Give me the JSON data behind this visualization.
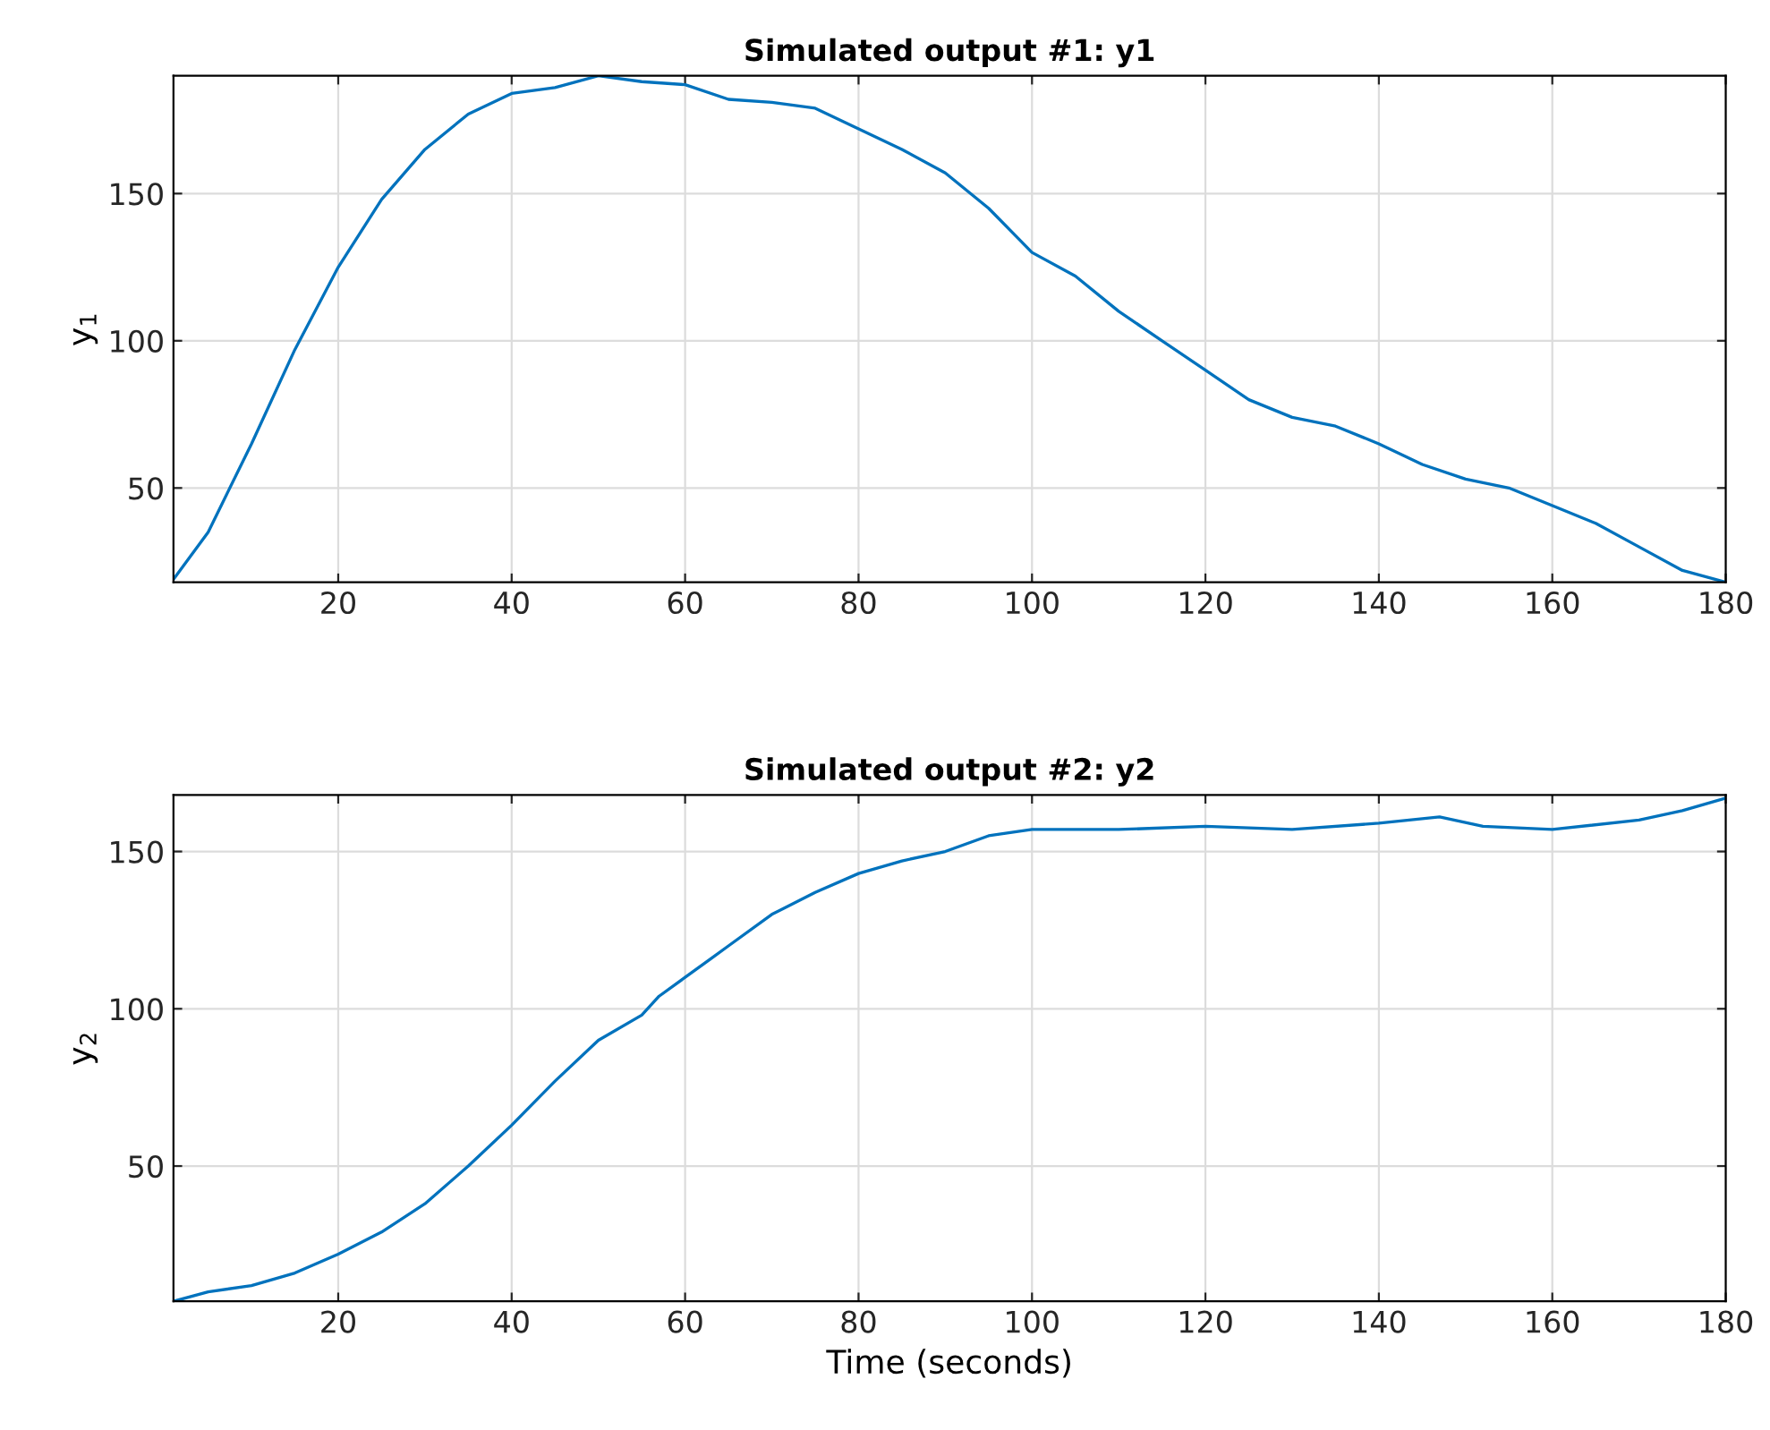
{
  "chart_data": [
    {
      "type": "line",
      "title": "Simulated output #1: y1",
      "ylabel": "y$_{1}$",
      "grid": true,
      "xlim": [
        1,
        180
      ],
      "ylim": [
        18,
        190
      ],
      "xticks": [
        20,
        40,
        60,
        80,
        100,
        120,
        140,
        160,
        180
      ],
      "yticks": [
        50,
        100,
        150
      ],
      "series": [
        {
          "color": "#0072bd",
          "x": [
            1,
            5,
            10,
            15,
            20,
            25,
            30,
            35,
            40,
            45,
            50,
            55,
            60,
            65,
            70,
            75,
            80,
            85,
            90,
            95,
            100,
            105,
            110,
            115,
            120,
            125,
            130,
            135,
            140,
            145,
            150,
            155,
            160,
            165,
            170,
            175,
            180
          ],
          "values": [
            19,
            35,
            65,
            97,
            125,
            148,
            165,
            177,
            184,
            186,
            190,
            188,
            187,
            182,
            181,
            179,
            172,
            165,
            157,
            145,
            130,
            122,
            110,
            100,
            90,
            80,
            74,
            71,
            65,
            58,
            53,
            50,
            44,
            38,
            30,
            22,
            18
          ]
        }
      ]
    },
    {
      "type": "line",
      "title": "Simulated output #2: y2",
      "xlabel": "Time (seconds)",
      "ylabel": "y$_{2}$",
      "grid": true,
      "xlim": [
        1,
        180
      ],
      "ylim": [
        7,
        168
      ],
      "xticks": [
        20,
        40,
        60,
        80,
        100,
        120,
        140,
        160,
        180
      ],
      "yticks": [
        50,
        100,
        150
      ],
      "series": [
        {
          "color": "#0072bd",
          "x": [
            1,
            5,
            10,
            15,
            20,
            25,
            30,
            35,
            40,
            45,
            50,
            55,
            57,
            60,
            63,
            65,
            70,
            75,
            80,
            85,
            90,
            95,
            100,
            110,
            120,
            130,
            140,
            147,
            152,
            160,
            170,
            175,
            180
          ],
          "values": [
            7,
            10,
            12,
            16,
            22,
            29,
            38,
            50,
            63,
            77,
            90,
            98,
            104,
            110,
            116,
            120,
            130,
            137,
            143,
            147,
            150,
            155,
            157,
            157,
            158,
            157,
            159,
            161,
            158,
            157,
            160,
            163,
            167
          ]
        }
      ]
    }
  ]
}
